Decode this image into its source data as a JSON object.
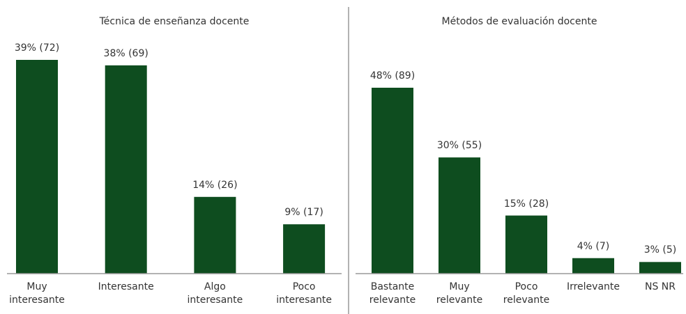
{
  "chart_data": [
    {
      "type": "bar",
      "title": "Técnica de enseñanza docente",
      "categories": [
        "Muy interesante",
        "Interesante",
        "Algo interesante",
        "Poco interesante"
      ],
      "values": [
        39,
        38,
        14,
        9
      ],
      "value_labels": [
        "39% (72)",
        "38% (69)",
        "14% (26)",
        "9% (17)"
      ],
      "color": "#0e4d1f"
    },
    {
      "type": "bar",
      "title": "Métodos de evaluación docente",
      "categories": [
        "Bastante relevante",
        "Muy relevante",
        "Poco relevante",
        "Irrelevante",
        "NS NR"
      ],
      "values": [
        48,
        30,
        15,
        4,
        3
      ],
      "value_labels": [
        "48% (89)",
        "30% (55)",
        "15% (28)",
        "4% (7)",
        "3% (5)"
      ],
      "color": "#0e4d1f"
    }
  ]
}
